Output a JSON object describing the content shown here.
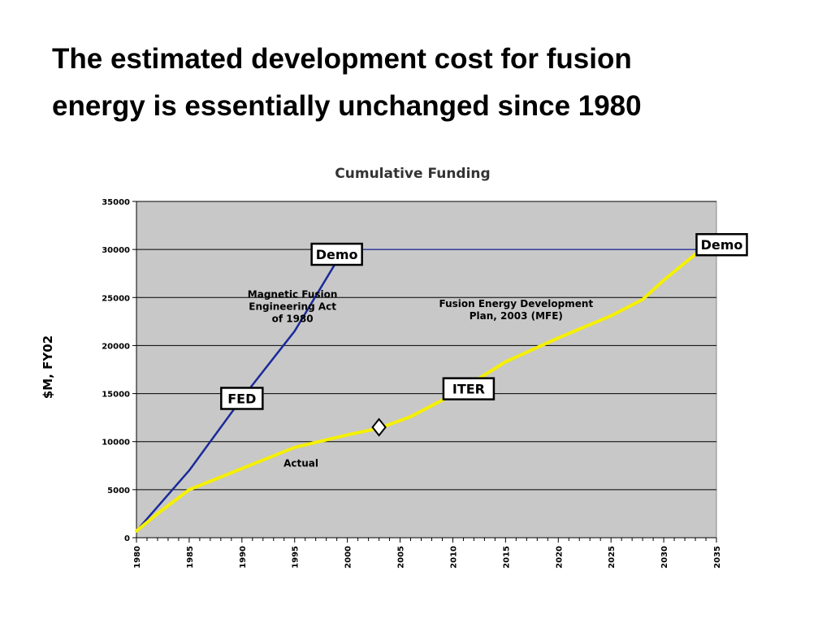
{
  "slide": {
    "title_line1": "The estimated development cost for fusion",
    "title_line2": "energy is essentially unchanged since 1980"
  },
  "chart_data": {
    "type": "line",
    "title": "Cumulative Funding",
    "xlabel": "",
    "ylabel": "$M, FY02",
    "xlim": [
      1980,
      2035
    ],
    "ylim": [
      0,
      35000
    ],
    "x_ticks": [
      1980,
      1985,
      1990,
      1995,
      2000,
      2005,
      2010,
      2015,
      2020,
      2025,
      2030,
      2035
    ],
    "y_ticks": [
      0,
      5000,
      10000,
      15000,
      20000,
      25000,
      30000,
      35000
    ],
    "grid": true,
    "legend": "none",
    "colors": {
      "plot_background": "#c8c8c8",
      "mfe_act": "#1a2a9a",
      "fusion_plan": "#f5f000",
      "gridline": "#000000"
    },
    "series": [
      {
        "key": "mfe_act",
        "points": [
          [
            1980,
            700
          ],
          [
            1985,
            7000
          ],
          [
            1990,
            14500
          ],
          [
            1995,
            21500
          ],
          [
            1999,
            28800
          ]
        ]
      },
      {
        "key": "mfe_act_flat",
        "points": [
          [
            1999,
            30000
          ],
          [
            2033,
            30000
          ]
        ]
      },
      {
        "key": "fusion_plan",
        "points": [
          [
            1980,
            700
          ],
          [
            1982,
            2500
          ],
          [
            1985,
            5000
          ],
          [
            1990,
            7200
          ],
          [
            1995,
            9400
          ],
          [
            2000,
            10700
          ],
          [
            2003,
            11400
          ],
          [
            2006,
            12600
          ],
          [
            2010,
            14900
          ],
          [
            2015,
            18300
          ],
          [
            2020,
            20800
          ],
          [
            2025,
            23100
          ],
          [
            2028,
            24800
          ],
          [
            2030,
            26800
          ],
          [
            2033,
            29500
          ]
        ]
      }
    ],
    "annotations": [
      {
        "key": "mfe_act_label",
        "lines": [
          "Magnetic Fusion",
          "Engineering Act",
          "of 1980"
        ],
        "x": 1994.8,
        "y": 25000
      },
      {
        "key": "plan_label",
        "lines": [
          "Fusion Energy Development",
          "Plan, 2003 (MFE)"
        ],
        "x": 2016,
        "y": 24000
      },
      {
        "key": "actual_label",
        "lines": [
          "Actual"
        ],
        "x": 1995.6,
        "y": 7400
      }
    ],
    "boxes": [
      {
        "key": "demo_1",
        "text": "Demo",
        "x": 1999,
        "y": 29500
      },
      {
        "key": "fed",
        "text": "FED",
        "x": 1990,
        "y": 14500
      },
      {
        "key": "iter",
        "text": "ITER",
        "x": 2011.5,
        "y": 15500
      },
      {
        "key": "demo_2",
        "text": "Demo",
        "x": 2035.5,
        "y": 30500
      }
    ],
    "markers": [
      {
        "key": "today_marker",
        "shape": "diamond",
        "x": 2003,
        "y": 11500
      }
    ]
  }
}
